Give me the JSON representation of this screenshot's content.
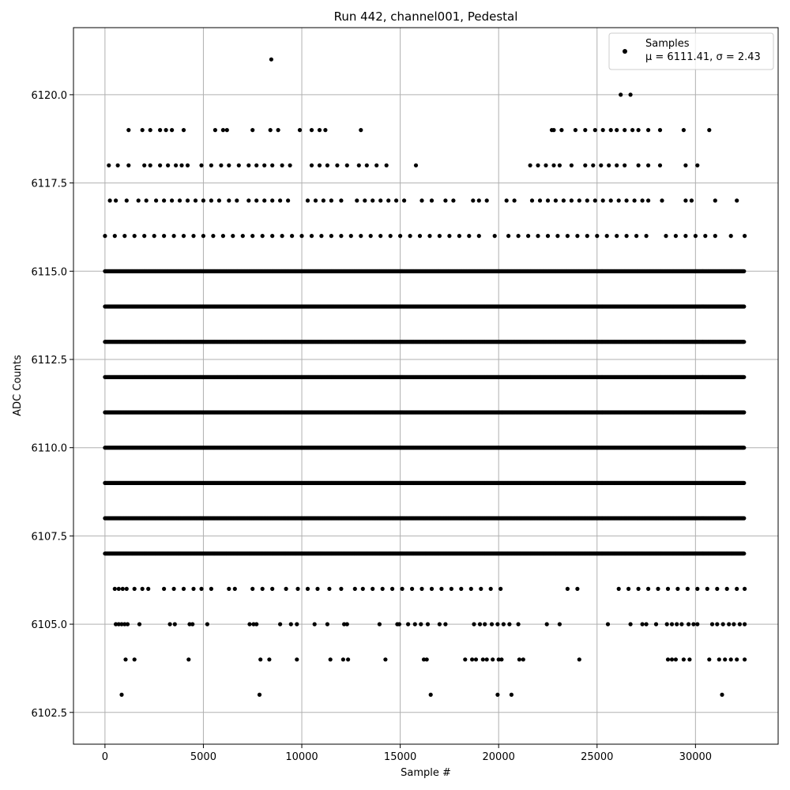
{
  "chart_data": {
    "type": "scatter",
    "title": "Run 442, channel001, Pedestal",
    "xlabel": "Sample #",
    "ylabel": "ADC Counts",
    "xlim": [
      -1600,
      34200
    ],
    "ylim": [
      6101.6,
      6121.9
    ],
    "xticks": [
      0,
      5000,
      10000,
      15000,
      20000,
      25000,
      30000
    ],
    "yticks": [
      6102.5,
      6105.0,
      6107.5,
      6110.0,
      6112.5,
      6115.0,
      6117.5,
      6120.0
    ],
    "xtick_labels": [
      "0",
      "5000",
      "10000",
      "15000",
      "20000",
      "25000",
      "30000"
    ],
    "ytick_labels": [
      "6102.5",
      "6105.0",
      "6107.5",
      "6110.0",
      "6112.5",
      "6115.0",
      "6117.5",
      "6120.0"
    ],
    "grid": true,
    "legend": {
      "placement": "top-right",
      "label": "Samples",
      "stats": "μ = 6111.41, σ = 2.43"
    },
    "series": [
      {
        "name": "Samples",
        "color": "#000000",
        "x_range": [
          0,
          32500
        ],
        "levels": [
          {
            "y": 6103,
            "x": [
              850,
              7850,
              16550,
              19950,
              20650,
              31350
            ]
          },
          {
            "y": 6104,
            "x": [
              1050,
              1500,
              4250,
              7900,
              8350,
              9750,
              11450,
              12100,
              12350,
              14250,
              16200,
              16350,
              18300,
              18650,
              18850,
              19200,
              19400,
              19700,
              20000,
              20150,
              21050,
              21250,
              24100,
              28600,
              28800,
              29000,
              29400,
              29700,
              30700,
              31200,
              31500,
              31800,
              32100,
              32500
            ]
          },
          {
            "y": 6105,
            "x": [
              550,
              700,
              850,
              1000,
              1150,
              1750,
              3300,
              3550,
              4300,
              4450,
              5200,
              7350,
              7550,
              7700,
              8900,
              9450,
              9750,
              10650,
              11300,
              12150,
              12300,
              13950,
              14850,
              14950,
              15400,
              15750,
              16050,
              16400,
              17000,
              17300,
              18750,
              19050,
              19300,
              19650,
              19950,
              20250,
              20550,
              21000,
              22450,
              23100,
              25550,
              26700,
              27300,
              27500,
              28000,
              28550,
              28800,
              29050,
              29300,
              29650,
              29900,
              30100,
              30850,
              31100,
              31400,
              31700,
              31950,
              32250,
              32500
            ]
          },
          {
            "y": 6106,
            "x": [
              500,
              700,
              900,
              1100,
              1500,
              1900,
              2200,
              3000,
              3500,
              4000,
              4500,
              4900,
              5400,
              6300,
              6600,
              7500,
              8000,
              8500,
              9200,
              9800,
              10300,
              10800,
              11400,
              12000,
              12700,
              13100,
              13600,
              14100,
              14600,
              15100,
              15600,
              16100,
              16600,
              17100,
              17600,
              18100,
              18600,
              19100,
              19600,
              20100,
              23500,
              24000,
              26100,
              26600,
              27100,
              27600,
              28100,
              28600,
              29100,
              29600,
              30100,
              30600,
              31100,
              31600,
              32100,
              32500
            ]
          },
          {
            "y": 6116,
            "x": [
              0,
              500,
              1000,
              1500,
              2000,
              2500,
              3000,
              3500,
              4000,
              4500,
              5000,
              5500,
              6000,
              6500,
              7000,
              7500,
              8000,
              8500,
              9000,
              9500,
              10000,
              10500,
              11000,
              11500,
              12000,
              12500,
              13000,
              13500,
              14000,
              14500,
              15000,
              15500,
              16000,
              16500,
              17000,
              17500,
              18000,
              18500,
              19000,
              19800,
              20500,
              21000,
              21500,
              22000,
              22500,
              23000,
              23500,
              24000,
              24500,
              25000,
              25500,
              26000,
              26500,
              27000,
              27500,
              28500,
              29000,
              29500,
              30000,
              30500,
              31000,
              31800,
              32500
            ]
          },
          {
            "y": 6117,
            "x": [
              250,
              550,
              1100,
              1700,
              2100,
              2600,
              3000,
              3400,
              3800,
              4200,
              4600,
              5000,
              5400,
              5800,
              6300,
              6700,
              7300,
              7700,
              8100,
              8500,
              8900,
              9300,
              10300,
              10700,
              11100,
              11500,
              12000,
              12800,
              13200,
              13600,
              14000,
              14400,
              14800,
              15200,
              16100,
              16600,
              17300,
              17700,
              18700,
              19000,
              19400,
              20400,
              20800,
              21700,
              22100,
              22500,
              22900,
              23300,
              23700,
              24100,
              24500,
              24900,
              25300,
              25700,
              26100,
              26500,
              26900,
              27300,
              27600,
              28300,
              29500,
              29800,
              31000,
              32100
            ]
          },
          {
            "y": 6118,
            "x": [
              200,
              650,
              1200,
              2000,
              2300,
              2800,
              3200,
              3600,
              3900,
              4200,
              4900,
              5400,
              5900,
              6300,
              6800,
              7300,
              7700,
              8100,
              8500,
              9000,
              9400,
              10500,
              10900,
              11300,
              11800,
              12300,
              12900,
              13300,
              13800,
              14300,
              15800,
              21600,
              22000,
              22400,
              22800,
              23100,
              23700,
              24400,
              24800,
              25200,
              25600,
              26000,
              26400,
              27100,
              27600,
              28200,
              29500,
              30100
            ]
          },
          {
            "y": 6119,
            "x": [
              1200,
              1900,
              2300,
              2800,
              3100,
              3400,
              4000,
              5600,
              6000,
              6200,
              7500,
              8400,
              8800,
              9900,
              10500,
              10900,
              11200,
              13000,
              22700,
              22800,
              23200,
              23900,
              24400,
              24900,
              25300,
              25700,
              26000,
              26400,
              26800,
              27100,
              27600,
              28200,
              29400,
              30700
            ]
          },
          {
            "y": 6120,
            "x": [
              26200,
              26700
            ]
          },
          {
            "y": 6121,
            "x": [
              8450
            ]
          }
        ],
        "dense_levels": [
          6107,
          6108,
          6109,
          6110,
          6111,
          6112,
          6113,
          6114,
          6115
        ]
      }
    ]
  }
}
